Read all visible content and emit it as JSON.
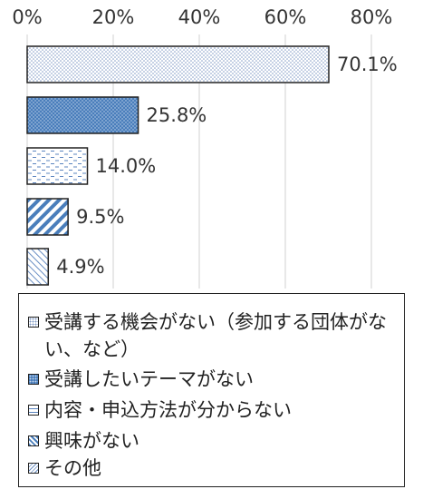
{
  "chart_data": {
    "type": "bar",
    "orientation": "horizontal",
    "categories": [
      "受講する機会がない（参加する団体がない、など）",
      "受講したいテーマがない",
      "内容・申込方法が分からない",
      "興味がない",
      "その他"
    ],
    "values": [
      70.1,
      25.8,
      14.0,
      9.5,
      4.9
    ],
    "value_labels": [
      "70.1%",
      "25.8%",
      "14.0%",
      "9.5%",
      "4.9%"
    ],
    "xlim": [
      0,
      80
    ],
    "x_ticks": [
      "0%",
      "20%",
      "40%",
      "60%",
      "80%"
    ],
    "grid": true,
    "legend_position": "bottom",
    "title": "",
    "xlabel": "",
    "ylabel": ""
  },
  "legend": {
    "items": [
      {
        "label": "受講する機会がない（参加する団体がない、など）",
        "pattern": "dots-light"
      },
      {
        "label": "受講したいテーマがない",
        "pattern": "dots-blue"
      },
      {
        "label": "内容・申込方法が分からない",
        "pattern": "dashes"
      },
      {
        "label": "興味がない",
        "pattern": "diag-wide"
      },
      {
        "label": "その他",
        "pattern": "diag-thin"
      }
    ]
  },
  "colors": {
    "blue": "#4a7ebb",
    "light_blue": "#c5d3e8",
    "stroke": "#222222",
    "grid": "#d0d0d0"
  }
}
